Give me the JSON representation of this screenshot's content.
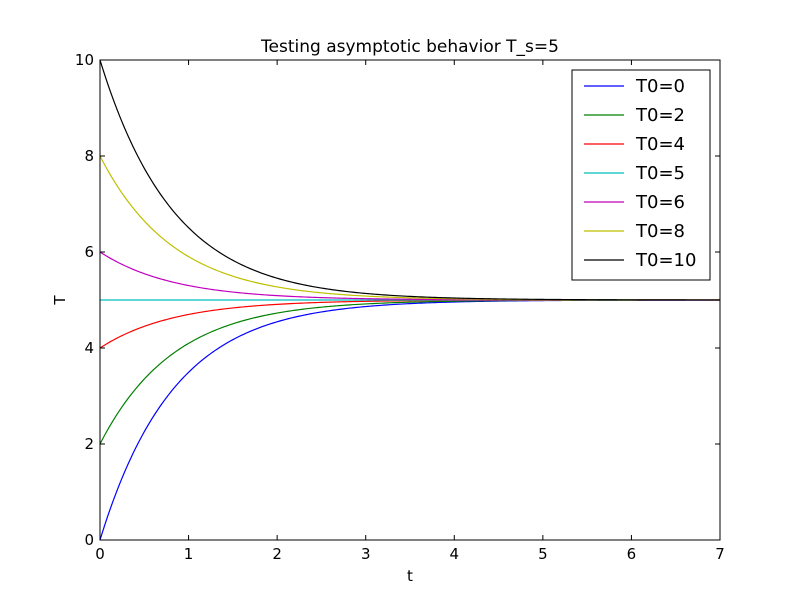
{
  "chart_data": {
    "type": "line",
    "title": "Testing asymptotic behavior T_s=5",
    "xlabel": "t",
    "ylabel": "T",
    "xlim": [
      0,
      7
    ],
    "ylim": [
      0,
      10
    ],
    "xticks": [
      0,
      1,
      2,
      3,
      4,
      5,
      6,
      7
    ],
    "yticks": [
      0,
      2,
      4,
      6,
      8,
      10
    ],
    "grid": false,
    "legend_position": "top-right",
    "model": "T(t) = 5 + (T0 - 5) * exp(-1.2 t)",
    "x": [
      0,
      0.25,
      0.5,
      0.75,
      1,
      1.5,
      2,
      2.5,
      3,
      3.5,
      4,
      4.5,
      5,
      5.5,
      6,
      6.5,
      7
    ],
    "series": [
      {
        "name": "T0=0",
        "color": "#0000ff",
        "values": [
          0,
          1.3,
          2.26,
          2.97,
          3.49,
          4.17,
          4.55,
          4.75,
          4.86,
          4.93,
          4.96,
          4.98,
          4.99,
          4.99,
          5.0,
          5.0,
          5.0
        ]
      },
      {
        "name": "T0=2",
        "color": "#008000",
        "values": [
          2,
          2.78,
          3.35,
          3.78,
          4.09,
          4.5,
          4.73,
          4.85,
          4.92,
          4.96,
          4.98,
          4.99,
          4.99,
          5.0,
          5.0,
          5.0,
          5.0
        ]
      },
      {
        "name": "T0=4",
        "color": "#ff0000",
        "values": [
          4,
          4.26,
          4.45,
          4.59,
          4.7,
          4.83,
          4.91,
          4.95,
          4.97,
          4.99,
          4.99,
          5.0,
          5.0,
          5.0,
          5.0,
          5.0,
          5.0
        ]
      },
      {
        "name": "T0=5",
        "color": "#00bfbf",
        "values": [
          5,
          5,
          5,
          5,
          5,
          5,
          5,
          5,
          5,
          5,
          5,
          5,
          5,
          5,
          5,
          5,
          5
        ]
      },
      {
        "name": "T0=6",
        "color": "#bf00bf",
        "values": [
          6,
          5.74,
          5.55,
          5.41,
          5.3,
          5.17,
          5.09,
          5.05,
          5.03,
          5.01,
          5.01,
          5.0,
          5.0,
          5.0,
          5.0,
          5.0,
          5.0
        ]
      },
      {
        "name": "T0=8",
        "color": "#bfbf00",
        "values": [
          8,
          7.22,
          6.65,
          6.22,
          5.9,
          5.5,
          5.27,
          5.15,
          5.08,
          5.04,
          5.02,
          5.01,
          5.01,
          5.0,
          5.0,
          5.0,
          5.0
        ]
      },
      {
        "name": "T0=10",
        "color": "#000000",
        "values": [
          10,
          8.7,
          7.74,
          7.03,
          6.51,
          5.83,
          5.45,
          5.25,
          5.14,
          5.07,
          5.04,
          5.02,
          5.01,
          5.01,
          5.0,
          5.0,
          5.0
        ]
      }
    ]
  }
}
